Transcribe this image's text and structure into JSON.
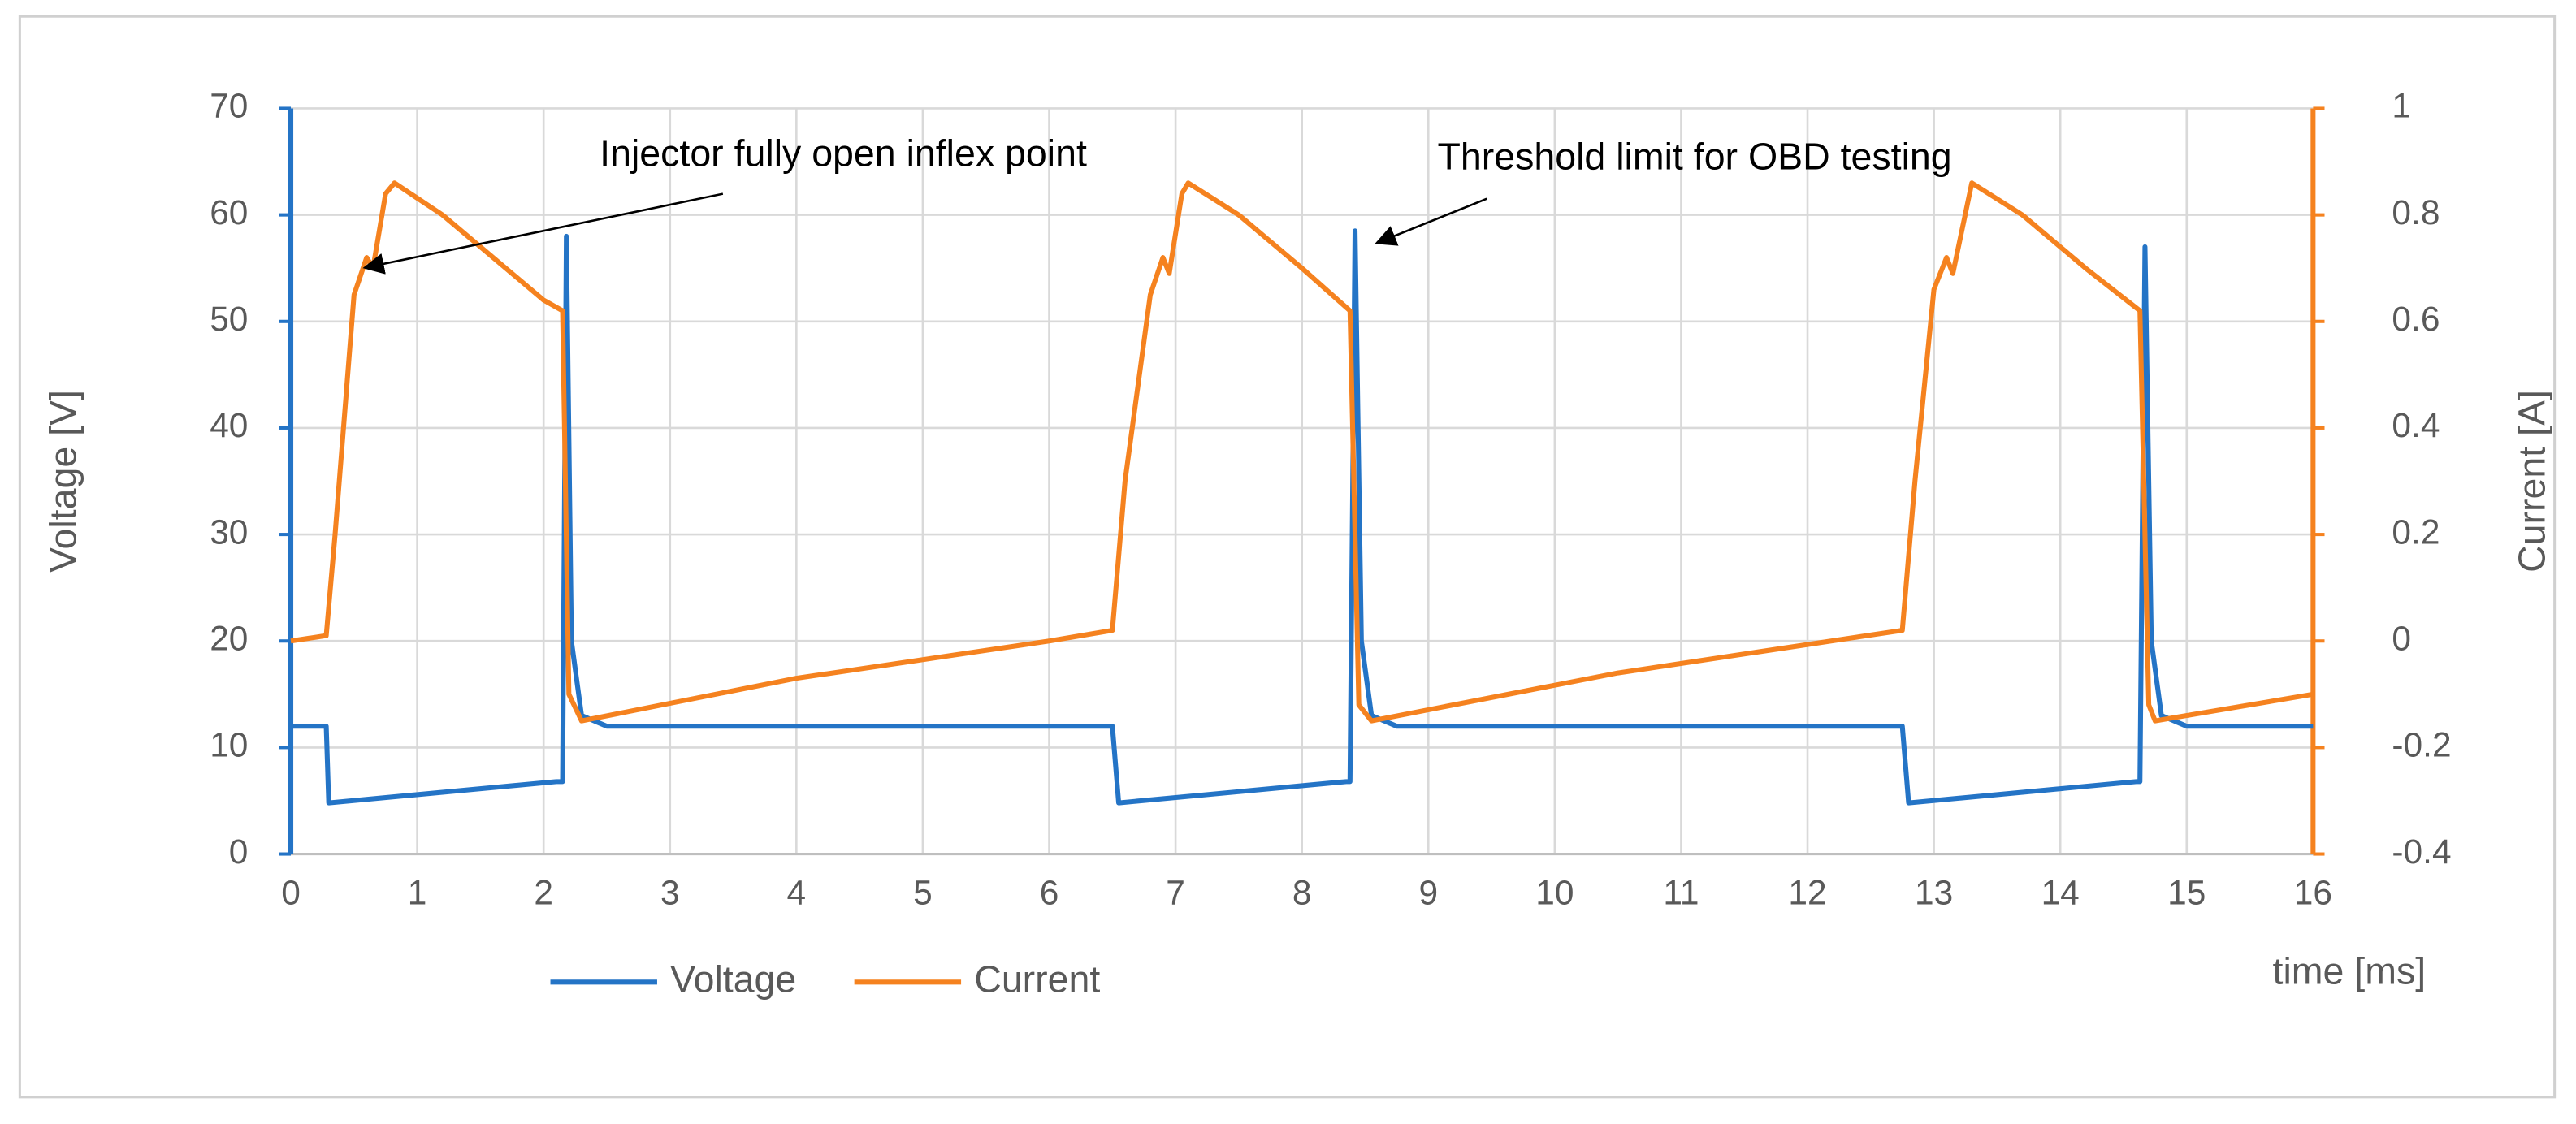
{
  "chart_data": {
    "type": "line",
    "xlabel": "time [ms]",
    "ylabel": "Voltage [V]",
    "y2label": "Current [A]",
    "xlim": [
      0,
      16
    ],
    "xticks": [
      0,
      1,
      2,
      3,
      4,
      5,
      6,
      7,
      8,
      9,
      10,
      11,
      12,
      13,
      14,
      15,
      16
    ],
    "ylim": [
      0,
      70
    ],
    "yticks": [
      0,
      10,
      20,
      30,
      40,
      50,
      60,
      70
    ],
    "y2lim": [
      -0.4,
      1
    ],
    "y2ticks": [
      -0.4,
      -0.2,
      0,
      0.2,
      0.4,
      0.6,
      0.8,
      1
    ],
    "grid": true,
    "legend": "bottom",
    "annotations": [
      {
        "text": "Injector fully open inflex point"
      },
      {
        "text": "Threshold limit for OBD testing"
      }
    ],
    "series": [
      {
        "name": "Voltage",
        "color": "#2474c6",
        "x": [
          0,
          0.28,
          0.3,
          2.1,
          2.15,
          2.18,
          2.22,
          2.3,
          2.5,
          6.5,
          6.55,
          8.35,
          8.38,
          8.42,
          8.47,
          8.55,
          8.75,
          12.75,
          12.8,
          14.6,
          14.63,
          14.67,
          14.72,
          14.8,
          15,
          16
        ],
        "values": [
          12,
          12,
          4.8,
          6.8,
          6.8,
          58,
          20,
          13,
          12,
          12,
          4.8,
          6.8,
          6.8,
          58.5,
          20,
          13,
          12,
          12,
          4.8,
          6.8,
          6.8,
          57,
          20,
          13,
          12,
          12
        ]
      },
      {
        "name": "Current",
        "color": "#f5821f",
        "axis": "y2",
        "x": [
          0,
          0.28,
          0.35,
          0.5,
          0.6,
          0.65,
          0.75,
          0.82,
          1.2,
          1.6,
          2.0,
          2.15,
          2.2,
          2.3,
          4,
          6,
          6.5,
          6.6,
          6.8,
          6.9,
          6.95,
          7.05,
          7.1,
          7.5,
          8.0,
          8.38,
          8.45,
          8.55,
          10.5,
          12.75,
          12.85,
          13.0,
          13.1,
          13.15,
          13.3,
          13.7,
          14.2,
          14.63,
          14.7,
          14.75,
          16
        ],
        "values": [
          0,
          0.01,
          0.2,
          0.65,
          0.72,
          0.7,
          0.84,
          0.86,
          0.8,
          0.72,
          0.64,
          0.62,
          -0.1,
          -0.15,
          -0.07,
          0,
          0.02,
          0.3,
          0.65,
          0.72,
          0.69,
          0.84,
          0.86,
          0.8,
          0.7,
          0.62,
          -0.12,
          -0.15,
          -0.06,
          0.02,
          0.3,
          0.66,
          0.72,
          0.69,
          0.86,
          0.8,
          0.7,
          0.62,
          -0.12,
          -0.15,
          -0.1
        ]
      }
    ]
  }
}
